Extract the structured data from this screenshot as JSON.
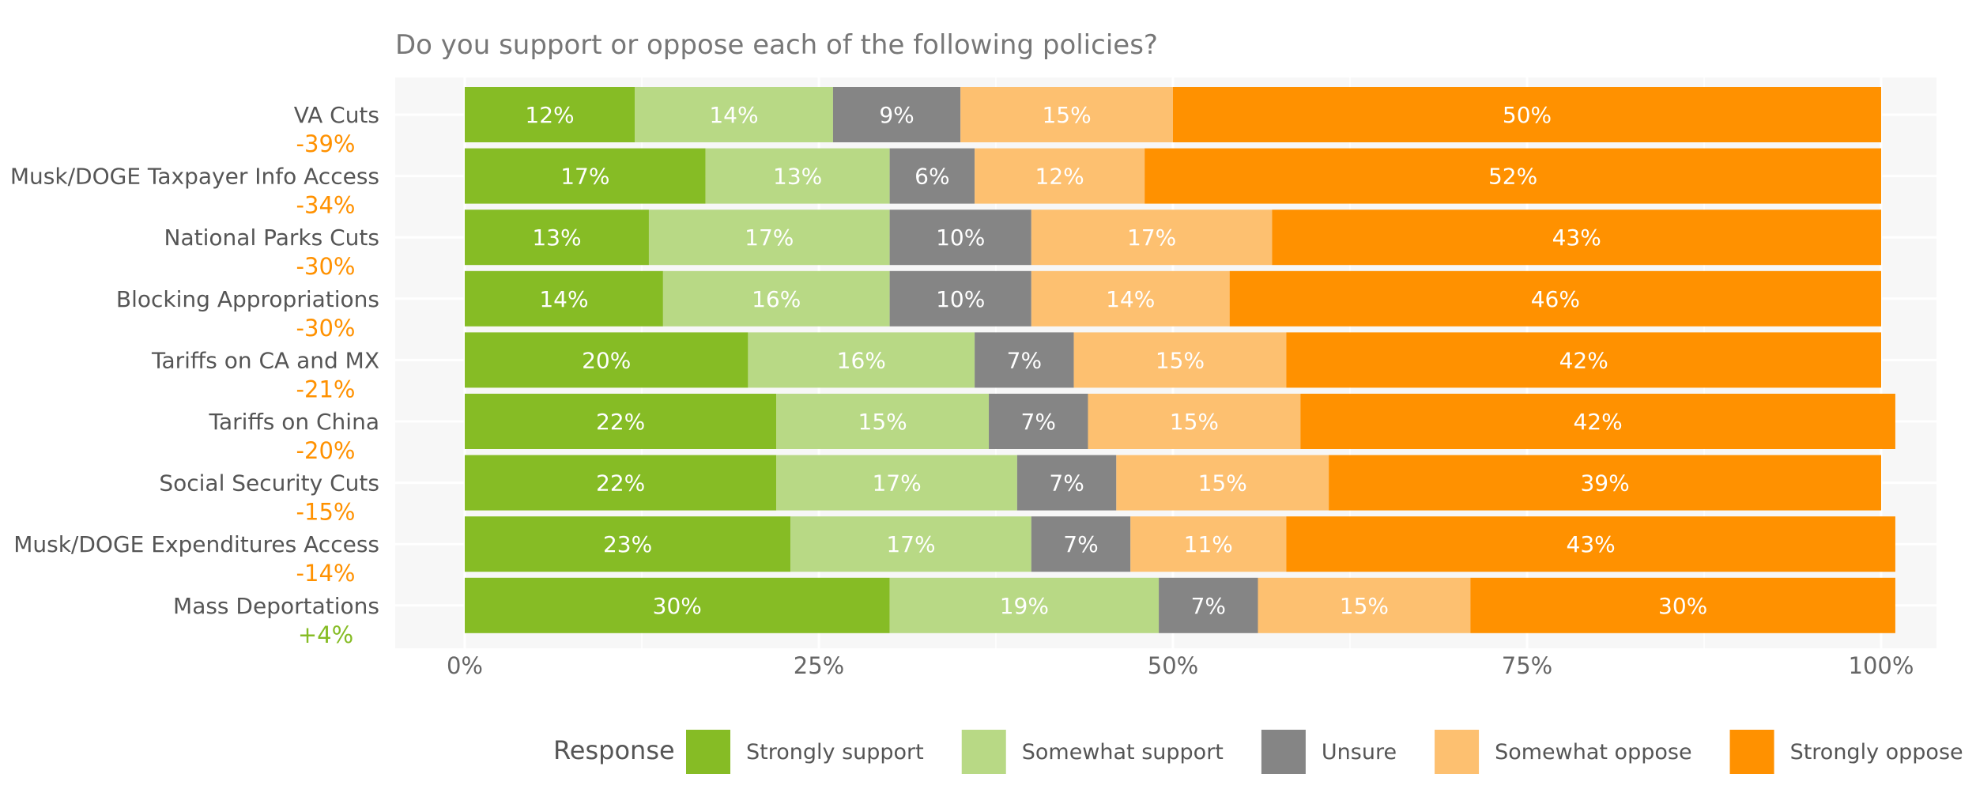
{
  "chart_data": {
    "type": "bar",
    "orientation": "horizontal",
    "stacked": true,
    "title": "Do you support or oppose each of the following policies?",
    "categories": [
      "VA Cuts",
      "Musk/DOGE Taxpayer Info Access",
      "National Parks Cuts",
      "Blocking Appropriations",
      "Tariffs on CA and MX",
      "Tariffs on China",
      "Social Security Cuts",
      "Musk/DOGE Expenditures Access",
      "Mass Deportations"
    ],
    "net_labels": [
      "-39%",
      "-34%",
      "-30%",
      "-30%",
      "-21%",
      "-20%",
      "-15%",
      "-14%",
      "+4%"
    ],
    "series": [
      {
        "name": "Strongly support",
        "color": "#86bc25",
        "label_color": "#ffffff",
        "values": [
          12,
          17,
          13,
          14,
          20,
          22,
          22,
          23,
          30
        ]
      },
      {
        "name": "Somewhat support",
        "color": "#b8d985",
        "label_color": "#ffffff",
        "values": [
          14,
          13,
          17,
          16,
          16,
          15,
          17,
          17,
          19
        ]
      },
      {
        "name": "Unsure",
        "color": "#858585",
        "label_color": "#ffffff",
        "values": [
          9,
          6,
          10,
          10,
          7,
          7,
          7,
          7,
          7
        ]
      },
      {
        "name": "Somewhat oppose",
        "color": "#fdc070",
        "label_color": "#ffffff",
        "values": [
          15,
          12,
          17,
          14,
          15,
          15,
          15,
          11,
          15
        ]
      },
      {
        "name": "Strongly oppose",
        "color": "#ff9100",
        "label_color": "#ffffff",
        "values": [
          50,
          52,
          43,
          46,
          42,
          42,
          39,
          43,
          30
        ]
      }
    ],
    "x_ticks": [
      "0%",
      "25%",
      "50%",
      "75%",
      "100%"
    ],
    "xlim": [
      0,
      100
    ],
    "legend_title": "Response",
    "legend_position": "bottom",
    "grid": true,
    "colors": {
      "negative_net": "#ff9100",
      "positive_net": "#86bc25",
      "text": "#555555",
      "panel": "#f7f7f7"
    }
  }
}
